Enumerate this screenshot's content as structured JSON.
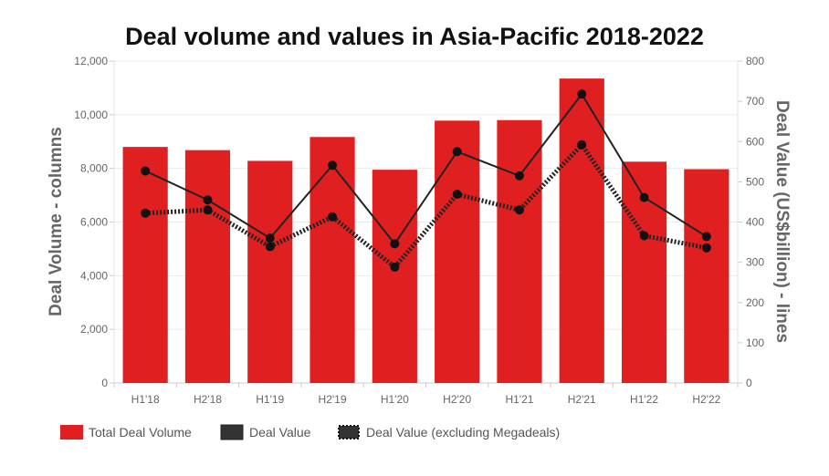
{
  "chart_data": {
    "type": "bar",
    "title": "Deal volume and values in Asia-Pacific 2018-2022",
    "categories": [
      "H1'18",
      "H2'18",
      "H1'19",
      "H2'19",
      "H1'20",
      "H2'20",
      "H1'21",
      "H2'21",
      "H1'22",
      "H2'22"
    ],
    "ylabel": "Deal Volume - columns",
    "y2label": "Deal Value (US$billion) - lines",
    "ylim": [
      0,
      12000
    ],
    "y2lim": [
      0,
      800
    ],
    "yticks": [
      "0",
      "2,000",
      "4,000",
      "6,000",
      "8,000",
      "10,000",
      "12,000"
    ],
    "y2ticks": [
      "0",
      "100",
      "200",
      "300",
      "400",
      "500",
      "600",
      "700",
      "800"
    ],
    "grid": true,
    "legend_position": "bottom-left",
    "series": [
      {
        "name": "Total Deal Volume",
        "type": "bar",
        "axis": "left",
        "color": "#e02020",
        "values": [
          8800,
          8680,
          8280,
          9170,
          7950,
          9780,
          9800,
          11350,
          8250,
          7970
        ]
      },
      {
        "name": "Deal Value",
        "type": "line",
        "axis": "right",
        "color": "#222222",
        "style": "solid",
        "values": [
          527,
          455,
          360,
          541,
          346,
          575,
          515,
          718,
          461,
          364
        ]
      },
      {
        "name": "Deal Value (excluding Megadeals)",
        "type": "line",
        "axis": "right",
        "color": "#222222",
        "style": "dotted",
        "values": [
          422,
          430,
          339,
          413,
          288,
          469,
          430,
          592,
          366,
          336
        ]
      }
    ]
  }
}
